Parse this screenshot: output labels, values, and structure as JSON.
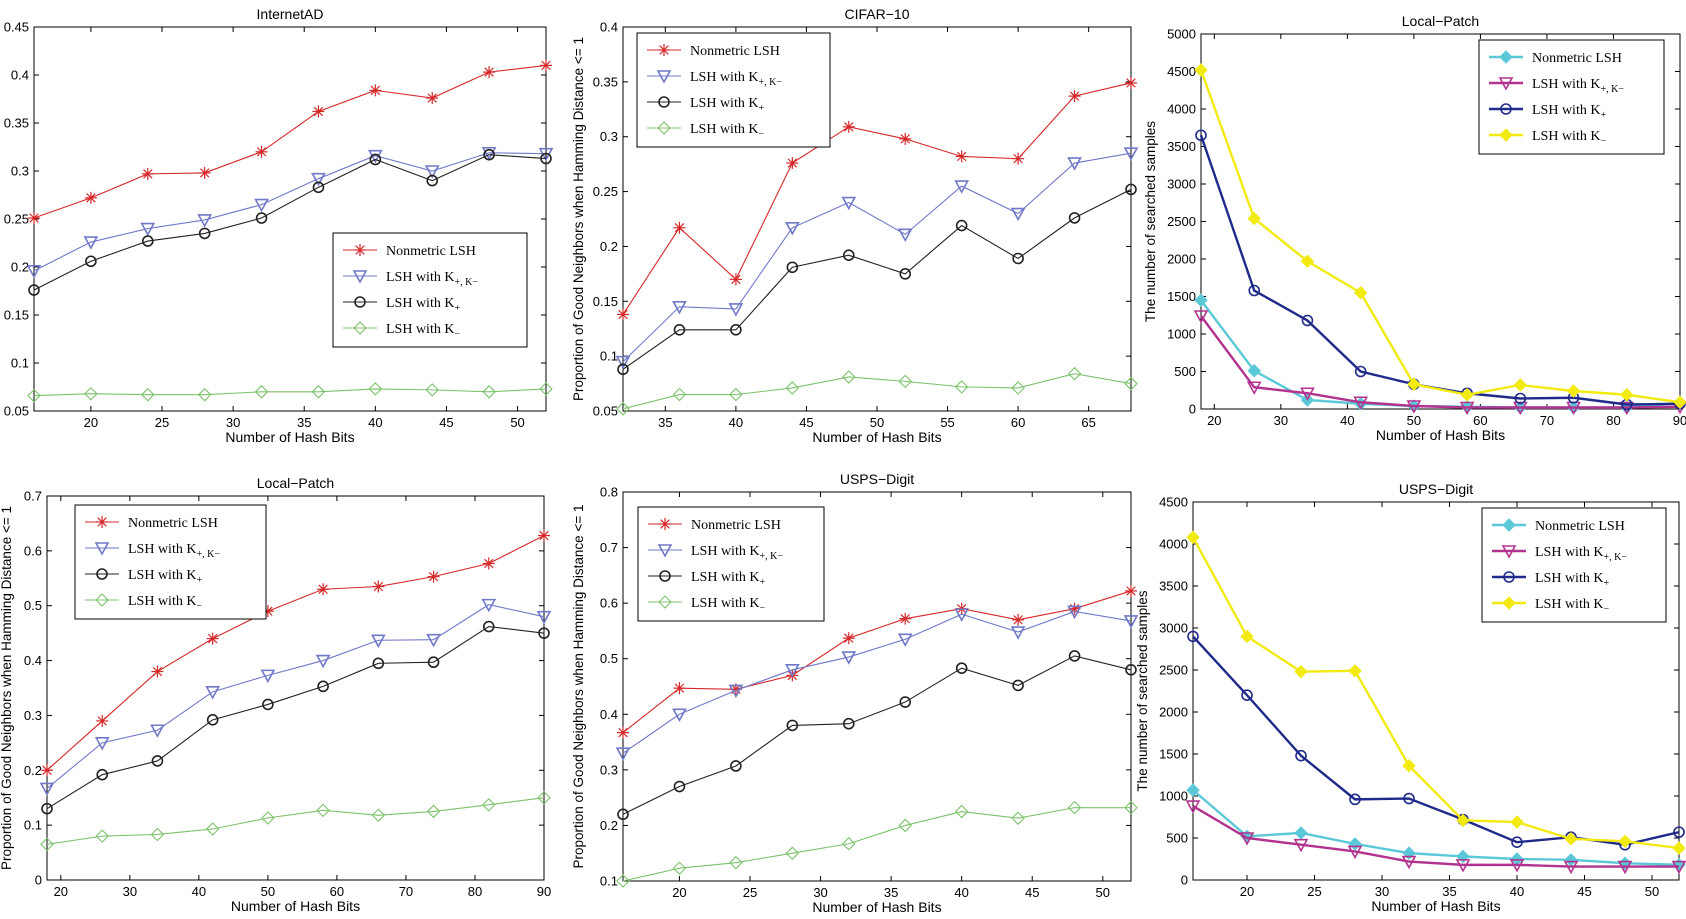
{
  "colors": {
    "red": "#d62728",
    "blue": "#6f79c8",
    "black": "#222222",
    "green": "#7cc26b",
    "cyan": "#5bc8d8",
    "magenta": "#b2338f",
    "navy": "#1f2a8a",
    "yellow": "#f2ea10"
  },
  "chart_data": [
    {
      "type": "line",
      "title": "InternetAD",
      "xlabel": "Number of Hash Bits",
      "ylabel": "Proportion of Good Neighbors when Hamming Distance <= 1",
      "xlim": [
        16,
        52
      ],
      "ylim": [
        0.05,
        0.45
      ],
      "xticks": [
        20,
        25,
        30,
        35,
        40,
        45,
        50
      ],
      "yticks": [
        0.05,
        0.1,
        0.15,
        0.2,
        0.25,
        0.3,
        0.35,
        0.4,
        0.45
      ],
      "ytick_labels": [
        "0.05",
        "0.1",
        "0.15",
        "0.2",
        "0.25",
        "0.3",
        "0.35",
        "0.4",
        "0.45"
      ],
      "legend": {
        "placement": "lower-right-center"
      },
      "x": [
        16,
        20,
        24,
        28,
        32,
        36,
        40,
        44,
        48,
        52
      ],
      "series": [
        {
          "name": "Nonmetric LSH",
          "name_sub": "",
          "color": "red",
          "marker": "star",
          "values": [
            0.251,
            0.272,
            0.297,
            0.298,
            0.32,
            0.362,
            0.384,
            0.376,
            0.403,
            0.41
          ]
        },
        {
          "name": "LSH with K",
          "name_sub": "+, K",
          "name_sub2": "−",
          "color": "blue",
          "marker": "triangle-down",
          "values": [
            0.196,
            0.226,
            0.24,
            0.249,
            0.265,
            0.292,
            0.316,
            0.3,
            0.319,
            0.318
          ]
        },
        {
          "name": "LSH with K",
          "name_sub": "+",
          "color": "black",
          "marker": "circle",
          "values": [
            0.176,
            0.206,
            0.227,
            0.235,
            0.251,
            0.283,
            0.312,
            0.29,
            0.317,
            0.313
          ]
        },
        {
          "name": "LSH with K",
          "name_sub": "−",
          "color": "green",
          "marker": "diamond",
          "values": [
            0.066,
            0.068,
            0.067,
            0.067,
            0.07,
            0.07,
            0.073,
            0.072,
            0.07,
            0.073
          ]
        }
      ]
    },
    {
      "type": "line",
      "title": "CIFAR−10",
      "xlabel": "Number of Hash Bits",
      "ylabel": "Proportion of Good Neighbors when Hamming Distance <= 1",
      "xlim": [
        32,
        68
      ],
      "ylim": [
        0.05,
        0.4
      ],
      "xticks": [
        35,
        40,
        45,
        50,
        55,
        60,
        65
      ],
      "yticks": [
        0.05,
        0.1,
        0.15,
        0.2,
        0.25,
        0.3,
        0.35,
        0.4
      ],
      "ytick_labels": [
        "0.05",
        "0.1",
        "0.15",
        "0.2",
        "0.25",
        "0.3",
        "0.35",
        "0.4"
      ],
      "legend": {
        "placement": "top-left"
      },
      "x": [
        32,
        36,
        40,
        44,
        48,
        52,
        56,
        60,
        64,
        68
      ],
      "series": [
        {
          "name": "Nonmetric LSH",
          "name_sub": "",
          "color": "red",
          "marker": "star",
          "values": [
            0.138,
            0.217,
            0.17,
            0.276,
            0.309,
            0.298,
            0.282,
            0.28,
            0.337,
            0.349
          ]
        },
        {
          "name": "LSH with K",
          "name_sub": "+, K",
          "name_sub2": "−",
          "color": "blue",
          "marker": "triangle-down",
          "values": [
            0.095,
            0.145,
            0.143,
            0.217,
            0.24,
            0.211,
            0.255,
            0.23,
            0.276,
            0.285
          ]
        },
        {
          "name": "LSH with K",
          "name_sub": "+",
          "color": "black",
          "marker": "circle",
          "values": [
            0.088,
            0.124,
            0.124,
            0.181,
            0.192,
            0.175,
            0.219,
            0.189,
            0.226,
            0.252
          ]
        },
        {
          "name": "LSH with K",
          "name_sub": "−",
          "color": "green",
          "marker": "diamond",
          "values": [
            0.052,
            0.065,
            0.065,
            0.071,
            0.081,
            0.077,
            0.072,
            0.071,
            0.084,
            0.075
          ]
        }
      ]
    },
    {
      "type": "line",
      "title": "Local−Patch",
      "xlabel": "Number of Hash Bits",
      "ylabel": "The number of searched samples",
      "xlim": [
        18,
        90
      ],
      "ylim": [
        0,
        5000
      ],
      "xticks": [
        20,
        30,
        40,
        50,
        60,
        70,
        80,
        90
      ],
      "yticks": [
        0,
        500,
        1000,
        1500,
        2000,
        2500,
        3000,
        3500,
        4000,
        4500,
        5000
      ],
      "ytick_labels": [
        "0",
        "500",
        "1000",
        "1500",
        "2000",
        "2500",
        "3000",
        "3500",
        "4000",
        "4500",
        "5000"
      ],
      "legend": {
        "placement": "top-right"
      },
      "x": [
        18,
        26,
        34,
        42,
        50,
        58,
        66,
        74,
        82,
        90
      ],
      "series": [
        {
          "name": "Nonmetric LSH",
          "name_sub": "",
          "color": "cyan",
          "marker": "filled-diamond",
          "values": [
            1450,
            510,
            120,
            70,
            40,
            30,
            20,
            20,
            20,
            80
          ]
        },
        {
          "name": "LSH with K",
          "name_sub": "+, K",
          "name_sub2": "−",
          "color": "magenta",
          "marker": "triangle-down",
          "values": [
            1240,
            290,
            210,
            90,
            40,
            20,
            20,
            20,
            20,
            30
          ]
        },
        {
          "name": "LSH with K",
          "name_sub": "+",
          "color": "navy",
          "marker": "circle",
          "values": [
            3650,
            1580,
            1180,
            500,
            330,
            210,
            140,
            150,
            60,
            70
          ]
        },
        {
          "name": "LSH with K",
          "name_sub": "−",
          "color": "yellow",
          "marker": "filled-diamond",
          "values": [
            4520,
            2540,
            1970,
            1550,
            330,
            190,
            320,
            240,
            190,
            90
          ]
        }
      ]
    },
    {
      "type": "line",
      "title": "Local−Patch",
      "xlabel": "Number of Hash Bits",
      "ylabel": "Proportion of Good Neighbors when Hamming Distance <= 1",
      "xlim": [
        18,
        90
      ],
      "ylim": [
        0,
        0.7
      ],
      "xticks": [
        20,
        30,
        40,
        50,
        60,
        70,
        80,
        90
      ],
      "yticks": [
        0,
        0.1,
        0.2,
        0.3,
        0.4,
        0.5,
        0.6,
        0.7
      ],
      "ytick_labels": [
        "0",
        "0.1",
        "0.2",
        "0.3",
        "0.4",
        "0.5",
        "0.6",
        "0.7"
      ],
      "legend": {
        "placement": "top-left"
      },
      "x": [
        18,
        26,
        34,
        42,
        50,
        58,
        66,
        74,
        82,
        90
      ],
      "series": [
        {
          "name": "Nonmetric LSH",
          "name_sub": "",
          "color": "red",
          "marker": "star",
          "values": [
            0.2,
            0.29,
            0.38,
            0.44,
            0.49,
            0.53,
            0.535,
            0.553,
            0.577,
            0.628
          ]
        },
        {
          "name": "LSH with K",
          "name_sub": "+, K",
          "name_sub2": "−",
          "color": "blue",
          "marker": "triangle-down",
          "values": [
            0.167,
            0.25,
            0.273,
            0.343,
            0.373,
            0.4,
            0.437,
            0.438,
            0.502,
            0.48
          ]
        },
        {
          "name": "LSH with K",
          "name_sub": "+",
          "color": "black",
          "marker": "circle",
          "values": [
            0.13,
            0.192,
            0.217,
            0.292,
            0.32,
            0.353,
            0.395,
            0.397,
            0.462,
            0.45
          ]
        },
        {
          "name": "LSH with K",
          "name_sub": "−",
          "color": "green",
          "marker": "diamond",
          "values": [
            0.065,
            0.08,
            0.083,
            0.093,
            0.113,
            0.127,
            0.118,
            0.125,
            0.137,
            0.15
          ]
        }
      ]
    },
    {
      "type": "line",
      "title": "USPS−Digit",
      "xlabel": "Number of Hash Bits",
      "ylabel": "Proportion of Good Neighbors when Hamming Distance <= 1",
      "xlim": [
        16,
        52
      ],
      "ylim": [
        0.1,
        0.8
      ],
      "xticks": [
        20,
        25,
        30,
        35,
        40,
        45,
        50
      ],
      "yticks": [
        0.1,
        0.2,
        0.3,
        0.4,
        0.5,
        0.6,
        0.7,
        0.8
      ],
      "ytick_labels": [
        "0.1",
        "0.2",
        "0.3",
        "0.4",
        "0.5",
        "0.6",
        "0.7",
        "0.8"
      ],
      "legend": {
        "placement": "top-left"
      },
      "x": [
        16,
        20,
        24,
        28,
        32,
        36,
        40,
        44,
        48,
        52
      ],
      "series": [
        {
          "name": "Nonmetric LSH",
          "name_sub": "",
          "color": "red",
          "marker": "star",
          "values": [
            0.367,
            0.447,
            0.445,
            0.47,
            0.537,
            0.572,
            0.59,
            0.57,
            0.59,
            0.622
          ]
        },
        {
          "name": "LSH with K",
          "name_sub": "+, K",
          "name_sub2": "−",
          "color": "blue",
          "marker": "triangle-down",
          "values": [
            0.33,
            0.4,
            0.443,
            0.48,
            0.503,
            0.535,
            0.58,
            0.548,
            0.585,
            0.568
          ]
        },
        {
          "name": "LSH with K",
          "name_sub": "+",
          "color": "black",
          "marker": "circle",
          "values": [
            0.22,
            0.27,
            0.307,
            0.38,
            0.383,
            0.422,
            0.483,
            0.452,
            0.505,
            0.48
          ]
        },
        {
          "name": "LSH with K",
          "name_sub": "−",
          "color": "green",
          "marker": "diamond",
          "values": [
            0.1,
            0.123,
            0.133,
            0.15,
            0.167,
            0.2,
            0.225,
            0.213,
            0.232,
            0.232
          ]
        }
      ]
    },
    {
      "type": "line",
      "title": "USPS−Digit",
      "xlabel": "Number of Hash Bits",
      "ylabel": "The number of searched samples",
      "xlim": [
        16,
        52
      ],
      "ylim": [
        0,
        4500
      ],
      "xticks": [
        20,
        25,
        30,
        35,
        40,
        45,
        50
      ],
      "yticks": [
        0,
        500,
        1000,
        1500,
        2000,
        2500,
        3000,
        3500,
        4000,
        4500
      ],
      "ytick_labels": [
        "0",
        "500",
        "1000",
        "1500",
        "2000",
        "2500",
        "3000",
        "3500",
        "4000",
        "4500"
      ],
      "legend": {
        "placement": "top-right"
      },
      "x": [
        16,
        20,
        24,
        28,
        32,
        36,
        40,
        44,
        48,
        52
      ],
      "series": [
        {
          "name": "Nonmetric LSH",
          "name_sub": "",
          "color": "cyan",
          "marker": "filled-diamond",
          "values": [
            1070,
            520,
            560,
            430,
            320,
            280,
            250,
            240,
            200,
            180
          ]
        },
        {
          "name": "LSH with K",
          "name_sub": "+, K",
          "name_sub2": "−",
          "color": "magenta",
          "marker": "triangle-down",
          "values": [
            880,
            500,
            420,
            340,
            220,
            180,
            180,
            160,
            160,
            160
          ]
        },
        {
          "name": "LSH with K",
          "name_sub": "+",
          "color": "navy",
          "marker": "circle",
          "values": [
            2900,
            2200,
            1480,
            960,
            970,
            720,
            450,
            510,
            420,
            570
          ]
        },
        {
          "name": "LSH with K",
          "name_sub": "−",
          "color": "yellow",
          "marker": "filled-diamond",
          "values": [
            4080,
            2900,
            2480,
            2490,
            1360,
            710,
            690,
            490,
            460,
            380
          ]
        }
      ]
    }
  ]
}
